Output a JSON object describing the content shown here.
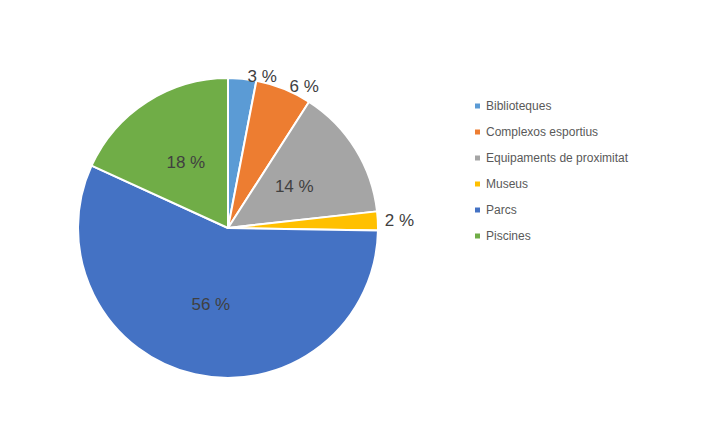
{
  "chart_data": {
    "type": "pie",
    "categories": [
      "Biblioteques",
      "Complexos esportius",
      "Equipaments de proximitat",
      "Museus",
      "Parcs",
      "Piscines"
    ],
    "values": [
      3,
      6,
      14,
      2,
      56,
      18
    ],
    "value_labels": [
      "3 %",
      "6 %",
      "14 %",
      "2 %",
      "56 %",
      "18 %"
    ],
    "colors": [
      "#5b9bd5",
      "#ed7d31",
      "#a5a5a5",
      "#ffc000",
      "#4472c4",
      "#70ad47"
    ],
    "legend": "right",
    "data_labels": true
  }
}
